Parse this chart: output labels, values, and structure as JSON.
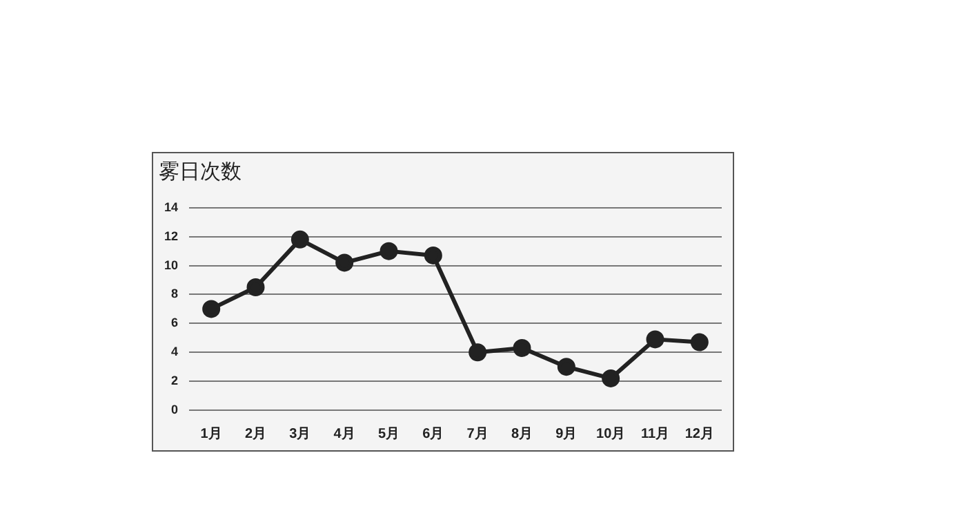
{
  "chart_data": {
    "type": "line",
    "ylabel": "雾日次数",
    "categories": [
      "1月",
      "2月",
      "3月",
      "4月",
      "5月",
      "6月",
      "7月",
      "8月",
      "9月",
      "10月",
      "11月",
      "12月"
    ],
    "values": [
      7,
      8.5,
      11.8,
      10.2,
      11,
      10.7,
      4,
      4.3,
      3,
      2.2,
      4.9,
      4.7
    ],
    "color": "#222222",
    "ylim": [
      0,
      14
    ],
    "yticks": [
      0,
      2,
      4,
      6,
      8,
      10,
      12,
      14
    ],
    "grid": "y",
    "marker": "circle",
    "line_style": "solid",
    "legend": false
  }
}
